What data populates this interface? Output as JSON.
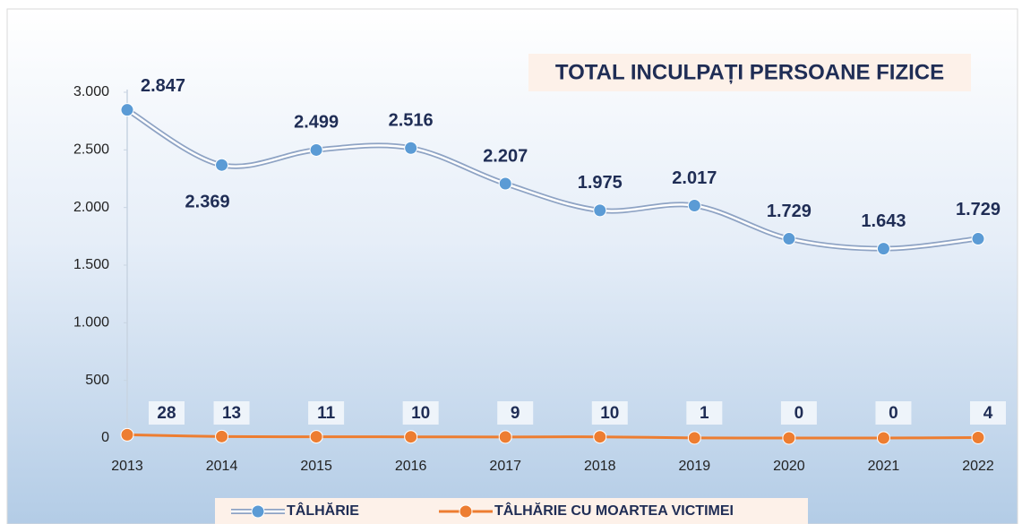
{
  "chart_data": {
    "type": "line",
    "title": "TOTAL INCULPAȚI PERSOANE FIZICE",
    "categories": [
      "2013",
      "2014",
      "2015",
      "2016",
      "2017",
      "2018",
      "2019",
      "2020",
      "2021",
      "2022"
    ],
    "series": [
      {
        "name": "TÂLHĂRIE",
        "color": "#5b9bd5",
        "values": [
          2847,
          2369,
          2499,
          2516,
          2207,
          1975,
          2017,
          1729,
          1643,
          1729
        ],
        "value_labels": [
          "2.847",
          "2.369",
          "2.499",
          "2.516",
          "2.207",
          "1.975",
          "2.017",
          "1.729",
          "1.643",
          "1.729"
        ]
      },
      {
        "name": "TÂLHĂRIE CU MOARTEA VICTIMEI",
        "color": "#ed7d31",
        "values": [
          28,
          13,
          11,
          10,
          9,
          10,
          1,
          0,
          0,
          4
        ]
      }
    ],
    "ylim": [
      0,
      3000
    ],
    "yticks": [
      0,
      500,
      {
        "value": 1000,
        "label": "1.000"
      },
      {
        "value": 1500,
        "label": "1.500"
      },
      {
        "value": 2000,
        "label": "2.000"
      },
      {
        "value": 2500,
        "label": "2.500"
      },
      {
        "value": 3000,
        "label": "3.000"
      }
    ],
    "grid": false,
    "legend": "bottom"
  }
}
